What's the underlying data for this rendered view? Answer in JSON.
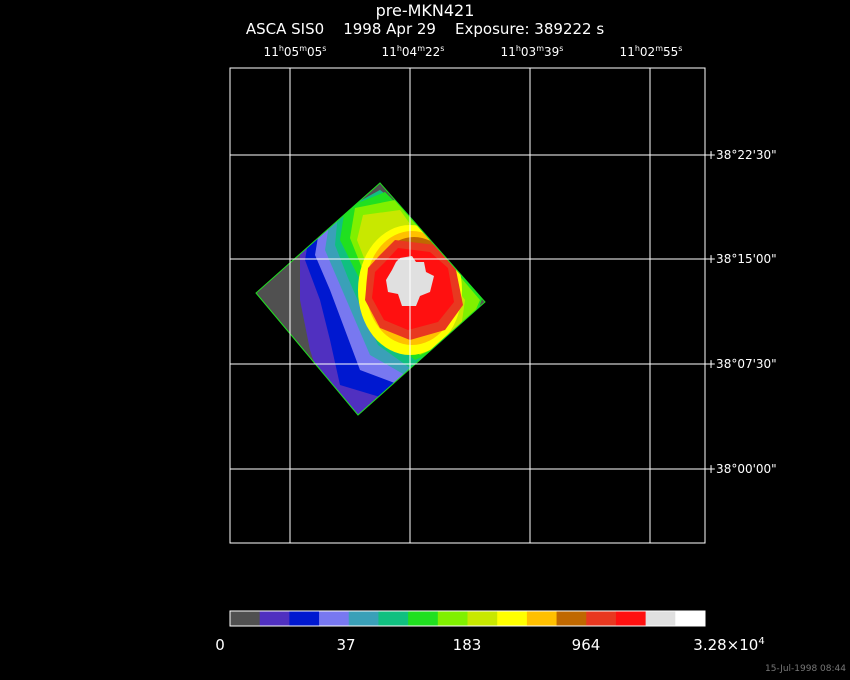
{
  "header": {
    "title": "pre-MKN421",
    "instrument": "ASCA SIS0",
    "date": "1998 Apr 29",
    "exposure": "Exposure: 389222 s"
  },
  "ra_labels": [
    {
      "h": "11",
      "hs": "h",
      "m": "05",
      "ms": "m",
      "s": "05",
      "ss": "s"
    },
    {
      "h": "11",
      "hs": "h",
      "m": "04",
      "ms": "m",
      "s": "22",
      "ss": "s"
    },
    {
      "h": "11",
      "hs": "h",
      "m": "03",
      "ms": "m",
      "s": "39",
      "ss": "s"
    },
    {
      "h": "11",
      "hs": "h",
      "m": "02",
      "ms": "m",
      "s": "55",
      "ss": "s"
    }
  ],
  "dec_labels": [
    "+38°22'30\"",
    "+38°15'00\"",
    "+38°07'30\"",
    "+38°00'00\""
  ],
  "colorbar": {
    "labels": [
      "0",
      "37",
      "183",
      "964"
    ],
    "max_label_base": "3.28×10",
    "max_label_exp": "4",
    "colors": [
      "#505050",
      "#5030c0",
      "#0018d0",
      "#7878f0",
      "#3aa0b8",
      "#10c080",
      "#20e020",
      "#80f000",
      "#c8e800",
      "#ffff00",
      "#ffc000",
      "#c06800",
      "#e83820",
      "#ff1010",
      "#e0e0e0",
      "#ffffff"
    ]
  },
  "footer": {
    "timestamp": "15-Jul-1998 08:44"
  }
}
